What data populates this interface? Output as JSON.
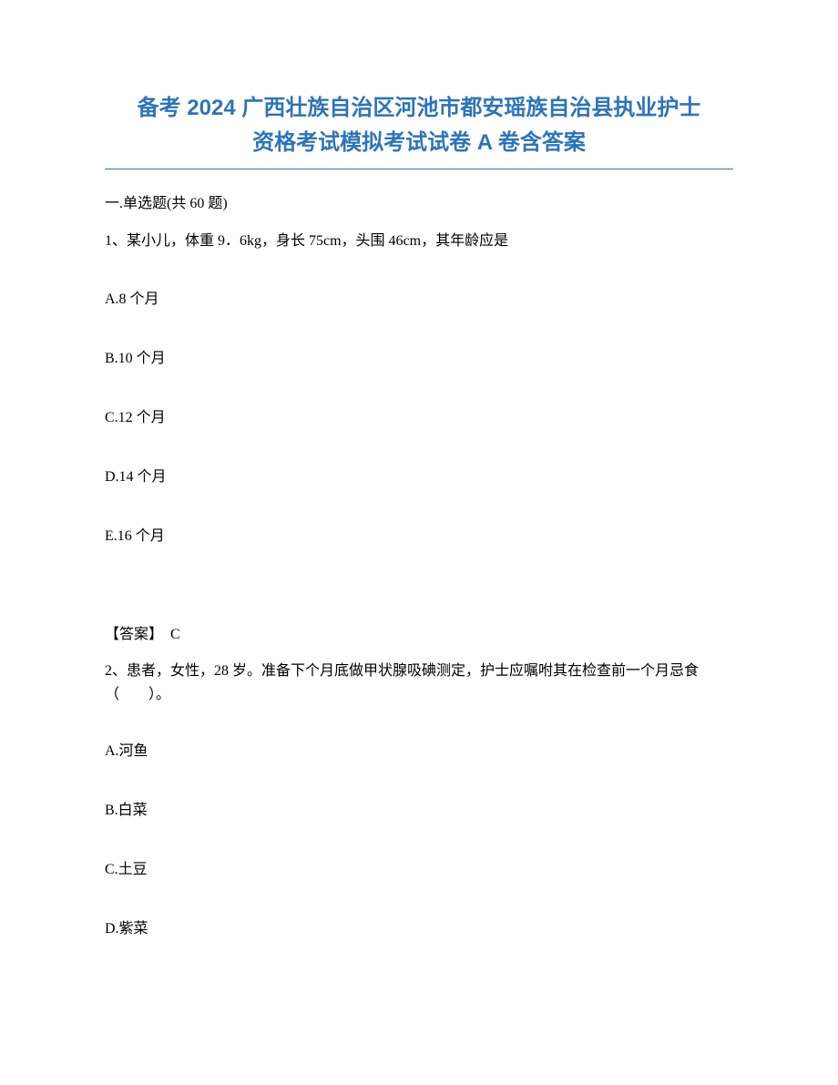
{
  "title_line1": "备考 2024 广西壮族自治区河池市都安瑶族自治县执业护士",
  "title_line2": "资格考试模拟考试试卷 A 卷含答案",
  "section_header": "一.单选题(共 60 题)",
  "question1": {
    "text": "1、某小儿，体重 9．6kg，身长 75cm，头围 46cm，其年龄应是",
    "options": {
      "a": "A.8 个月",
      "b": "B.10 个月",
      "c": "C.12 个月",
      "d": "D.14 个月",
      "e": "E.16 个月"
    },
    "answer_label": "【答案】",
    "answer_value": "C"
  },
  "question2": {
    "text": "2、患者，女性，28 岁。准备下个月底做甲状腺吸碘测定，护士应嘱咐其在检查前一个月忌食（　　）。",
    "options": {
      "a": "A.河鱼",
      "b": "B.白菜",
      "c": "C.土豆",
      "d": "D.紫菜"
    }
  },
  "colors": {
    "title_color": "#2e74b5",
    "text_color": "#000000",
    "background": "#ffffff",
    "underline_color": "#2e74b5"
  },
  "typography": {
    "title_fontsize": 24,
    "body_fontsize": 16,
    "title_weight": "bold"
  }
}
